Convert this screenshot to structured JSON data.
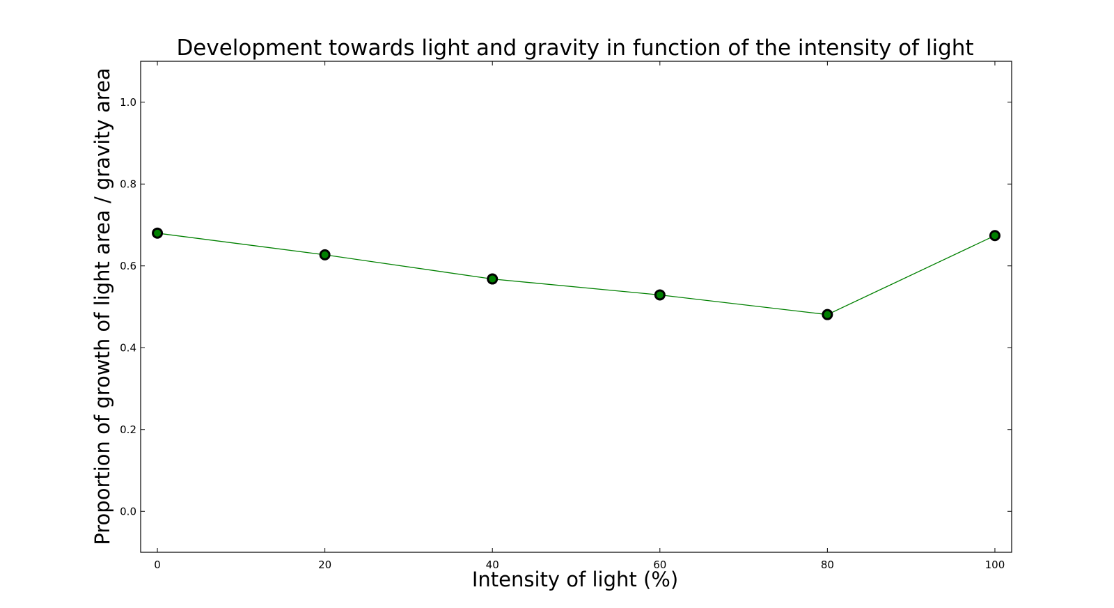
{
  "chart_data": {
    "type": "line",
    "title": "Development towards light and gravity in function of the intensity of light",
    "xlabel": "Intensity of light (%)",
    "ylabel": "Proportion of growth of light area / gravity area",
    "xlim": [
      -2,
      102
    ],
    "ylim": [
      -0.1,
      1.1
    ],
    "x_ticks": [
      "0",
      "20",
      "40",
      "60",
      "80",
      "100"
    ],
    "y_ticks": [
      "0.0",
      "0.2",
      "0.4",
      "0.6",
      "0.8",
      "1.0"
    ],
    "x": [
      0,
      20,
      40,
      60,
      80,
      100
    ],
    "series": [
      {
        "values": [
          0.68,
          0.627,
          0.568,
          0.529,
          0.481,
          0.674
        ],
        "line_color": "#008000",
        "marker_face_color": "#008000",
        "marker_edge_color": "#000000"
      }
    ],
    "grid": false,
    "legend": "none"
  }
}
